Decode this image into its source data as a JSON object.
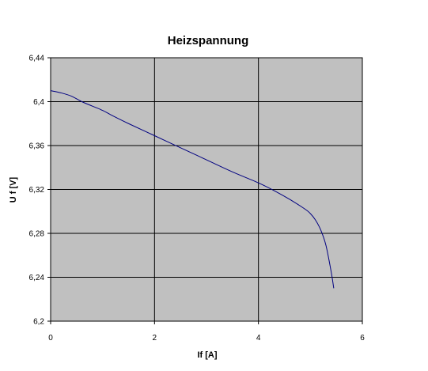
{
  "chart_data": {
    "type": "line",
    "title": "Heizspannung",
    "xlabel": "If [A]",
    "ylabel": "U f [V]",
    "xlim": [
      0,
      6
    ],
    "ylim": [
      6.2,
      6.44
    ],
    "x_ticks": [
      "0",
      "2",
      "4",
      "6"
    ],
    "y_ticks": [
      "6,2",
      "6,24",
      "6,28",
      "6,32",
      "6,36",
      "6,4",
      "6,44"
    ],
    "grid": true,
    "legend": "none",
    "colors": {
      "plot_background": "#c0c0c0",
      "grid": "#000000",
      "line": "#000080"
    },
    "series": [
      {
        "x": [
          0,
          0.2,
          0.4,
          0.6,
          0.8,
          1.0,
          1.2,
          1.5,
          2.0,
          2.5,
          3.0,
          3.5,
          4.0,
          4.3,
          4.6,
          4.9,
          5.0,
          5.1,
          5.2,
          5.3,
          5.4,
          5.45
        ],
        "y": [
          6.41,
          6.408,
          6.405,
          6.4,
          6.396,
          6.392,
          6.387,
          6.38,
          6.369,
          6.358,
          6.347,
          6.336,
          6.326,
          6.319,
          6.311,
          6.302,
          6.298,
          6.292,
          6.283,
          6.269,
          6.245,
          6.23
        ]
      }
    ]
  }
}
